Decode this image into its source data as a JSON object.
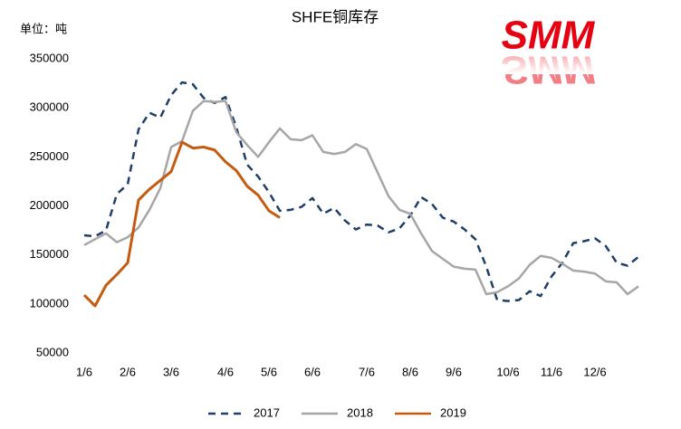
{
  "chart_data": {
    "type": "line",
    "title": "SHFE铜库存",
    "y_unit_label": "单位：吨",
    "logo": "SMM",
    "categories": [
      "1/6",
      null,
      null,
      null,
      "2/6",
      null,
      null,
      null,
      "3/6",
      null,
      null,
      null,
      null,
      "4/6",
      null,
      null,
      null,
      "5/6",
      null,
      null,
      null,
      "6/6",
      null,
      null,
      null,
      null,
      "7/6",
      null,
      null,
      null,
      "8/6",
      null,
      null,
      null,
      "9/6",
      null,
      null,
      null,
      null,
      "10/6",
      null,
      null,
      null,
      "11/6",
      null,
      null,
      null,
      "12/6",
      null,
      null,
      null,
      null
    ],
    "series": [
      {
        "name": "2017",
        "color": "#1f3f66",
        "dashed": true,
        "values": [
          170000,
          169000,
          175000,
          212000,
          222000,
          278000,
          295000,
          290000,
          313000,
          326000,
          324000,
          310000,
          305000,
          311000,
          280000,
          242000,
          230000,
          214000,
          195000,
          196000,
          199000,
          208000,
          192000,
          198000,
          185000,
          176000,
          181000,
          180000,
          173000,
          177000,
          190000,
          209000,
          202000,
          188000,
          184000,
          176000,
          166000,
          138000,
          104000,
          103000,
          104000,
          113000,
          108000,
          128000,
          142000,
          162000,
          164000,
          167000,
          159000,
          142000,
          139000,
          148000
        ]
      },
      {
        "name": "2018",
        "color": "#a6a6a6",
        "dashed": false,
        "values": [
          160000,
          166000,
          172000,
          163000,
          168000,
          178000,
          196000,
          218000,
          260000,
          266000,
          297000,
          307000,
          306000,
          307000,
          275000,
          262000,
          250000,
          265000,
          279000,
          268000,
          267000,
          272000,
          255000,
          253000,
          255000,
          263000,
          258000,
          234000,
          210000,
          196000,
          192000,
          172000,
          154000,
          146000,
          138000,
          136000,
          135000,
          110000,
          112000,
          118000,
          126000,
          140000,
          149000,
          147000,
          141000,
          134000,
          133000,
          131000,
          123000,
          122000,
          110000,
          118000
        ]
      },
      {
        "name": "2019",
        "color": "#c55a11",
        "dashed": false,
        "values": [
          109000,
          98000,
          119000,
          130000,
          142000,
          206000,
          217000,
          226000,
          235000,
          265000,
          259000,
          260000,
          257000,
          245000,
          236000,
          220000,
          211000,
          195000,
          188000,
          null,
          null,
          null,
          null,
          null,
          null,
          null,
          null,
          null,
          null,
          null,
          null,
          null,
          null,
          null,
          null,
          null,
          null,
          null,
          null,
          null,
          null,
          null,
          null,
          null,
          null,
          null,
          null,
          null,
          null,
          null,
          null,
          null
        ]
      }
    ],
    "ylim": [
      50000,
      350000
    ],
    "yticks": [
      50000,
      100000,
      150000,
      200000,
      250000,
      300000,
      350000
    ],
    "grid": false,
    "legend": "bottom"
  }
}
